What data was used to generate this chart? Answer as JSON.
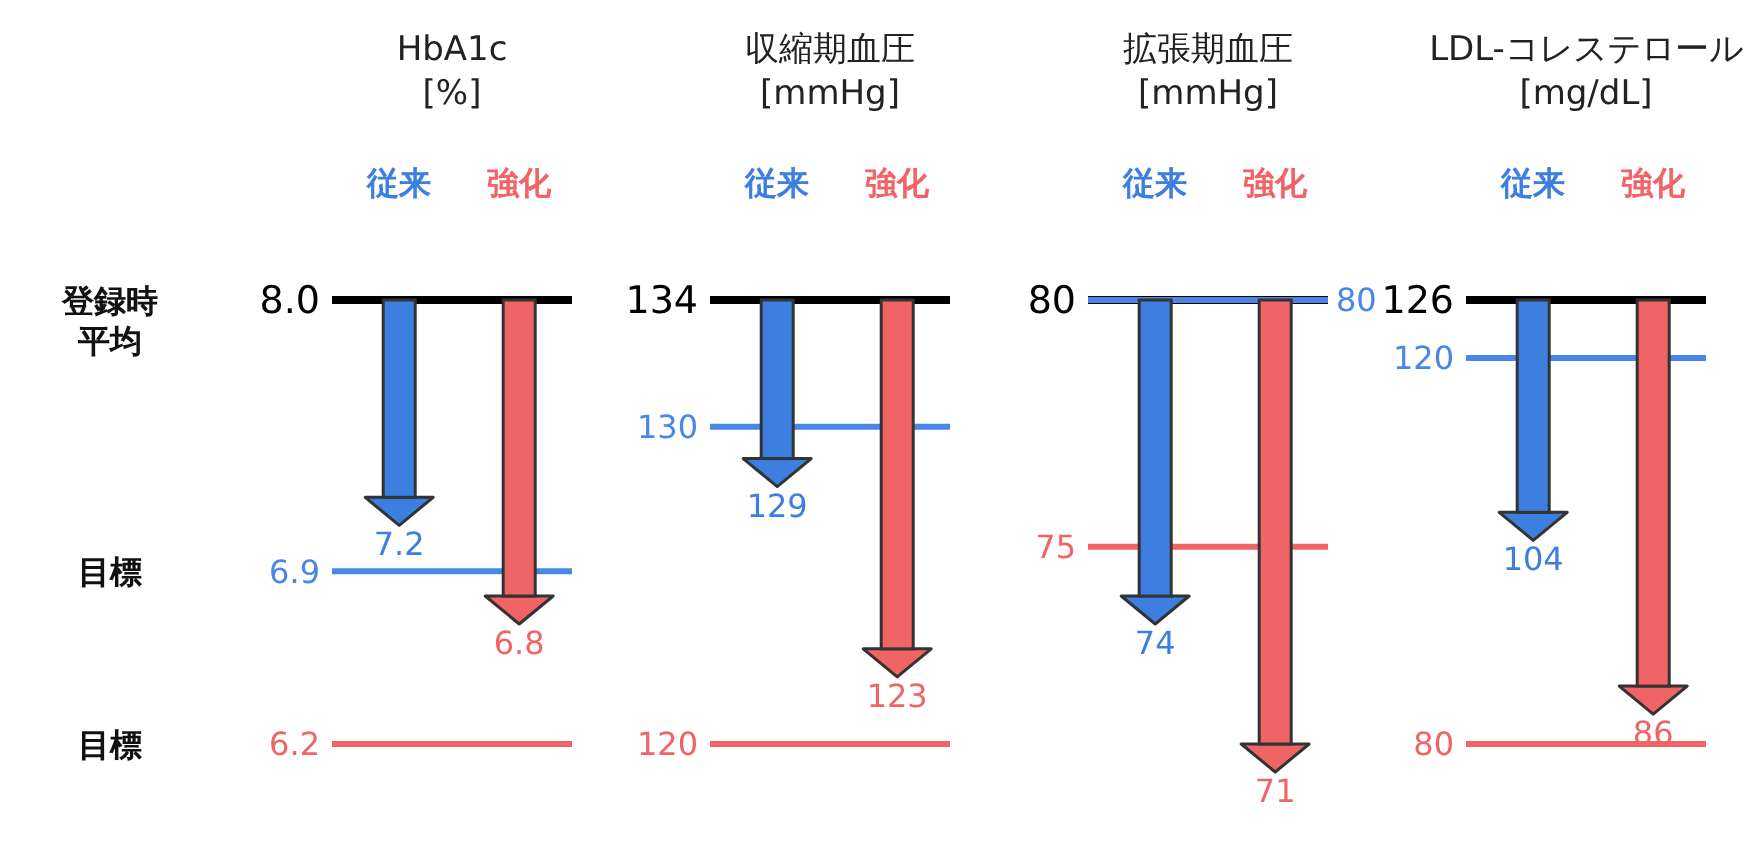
{
  "chart_data": [
    {
      "type": "bar",
      "title": "HbA1c\n[%]",
      "categories": [
        "従来",
        "強化"
      ],
      "base": [
        8.0,
        8.0
      ],
      "values": [
        -0.8,
        -1.2
      ],
      "colors": [
        "#3d7fe0",
        "#f06466"
      ],
      "value_labels": [
        "7.2",
        "6.8"
      ],
      "ylim": [
        6.2,
        8.0
      ],
      "yticks": [
        {
          "value": 8.0,
          "label": "8.0"
        },
        6.9,
        6.2
      ],
      "ref_lines": [
        {
          "axis": "y",
          "value": 8.0,
          "color": "#000000"
        },
        {
          "axis": "y",
          "value": 6.9,
          "color": "#4a86e8"
        },
        {
          "axis": "y",
          "value": 6.2,
          "color": "#f06466"
        }
      ],
      "annotations": [
        "登録時平均",
        "目標",
        "目標"
      ]
    },
    {
      "type": "bar",
      "title": "収縮期血圧\n[mmHg]",
      "categories": [
        "従来",
        "強化"
      ],
      "base": [
        134,
        134
      ],
      "values": [
        -5,
        -11
      ],
      "colors": [
        "#3d7fe0",
        "#f06466"
      ],
      "value_labels": [
        "129",
        "123"
      ],
      "ylim": [
        120,
        134
      ],
      "yticks": [
        134,
        130,
        120
      ],
      "ref_lines": [
        {
          "axis": "y",
          "value": 134,
          "color": "#000000"
        },
        {
          "axis": "y",
          "value": 130,
          "color": "#4a86e8"
        },
        {
          "axis": "y",
          "value": 120,
          "color": "#f06466"
        }
      ]
    },
    {
      "type": "bar",
      "title": "拡張期血圧\n[mmHg]",
      "categories": [
        "従来",
        "強化"
      ],
      "base": [
        80,
        80
      ],
      "values": [
        -6,
        -9
      ],
      "colors": [
        "#3d7fe0",
        "#f06466"
      ],
      "value_labels": [
        "74",
        "71"
      ],
      "ylim": [
        71,
        80
      ],
      "yticks": [
        80,
        75
      ],
      "ref_lines": [
        {
          "axis": "y",
          "value": 80,
          "color": "#000000"
        },
        {
          "axis": "y",
          "value": 80,
          "label": "80",
          "color": "#4a86e8"
        },
        {
          "axis": "y",
          "value": 75,
          "color": "#f06466"
        }
      ]
    },
    {
      "type": "bar",
      "title": "LDL-コレステロール\n[mg/dL]",
      "categories": [
        "従来",
        "強化"
      ],
      "base": [
        126,
        126
      ],
      "values": [
        -22,
        -40
      ],
      "colors": [
        "#3d7fe0",
        "#f06466"
      ],
      "value_labels": [
        "104",
        "86"
      ],
      "ylim": [
        80,
        126
      ],
      "yticks": [
        126,
        120,
        80
      ],
      "ref_lines": [
        {
          "axis": "y",
          "value": 126,
          "color": "#000000"
        },
        {
          "axis": "y",
          "value": 120,
          "color": "#4a86e8"
        },
        {
          "axis": "y",
          "value": 80,
          "color": "#f06466"
        }
      ]
    }
  ]
}
